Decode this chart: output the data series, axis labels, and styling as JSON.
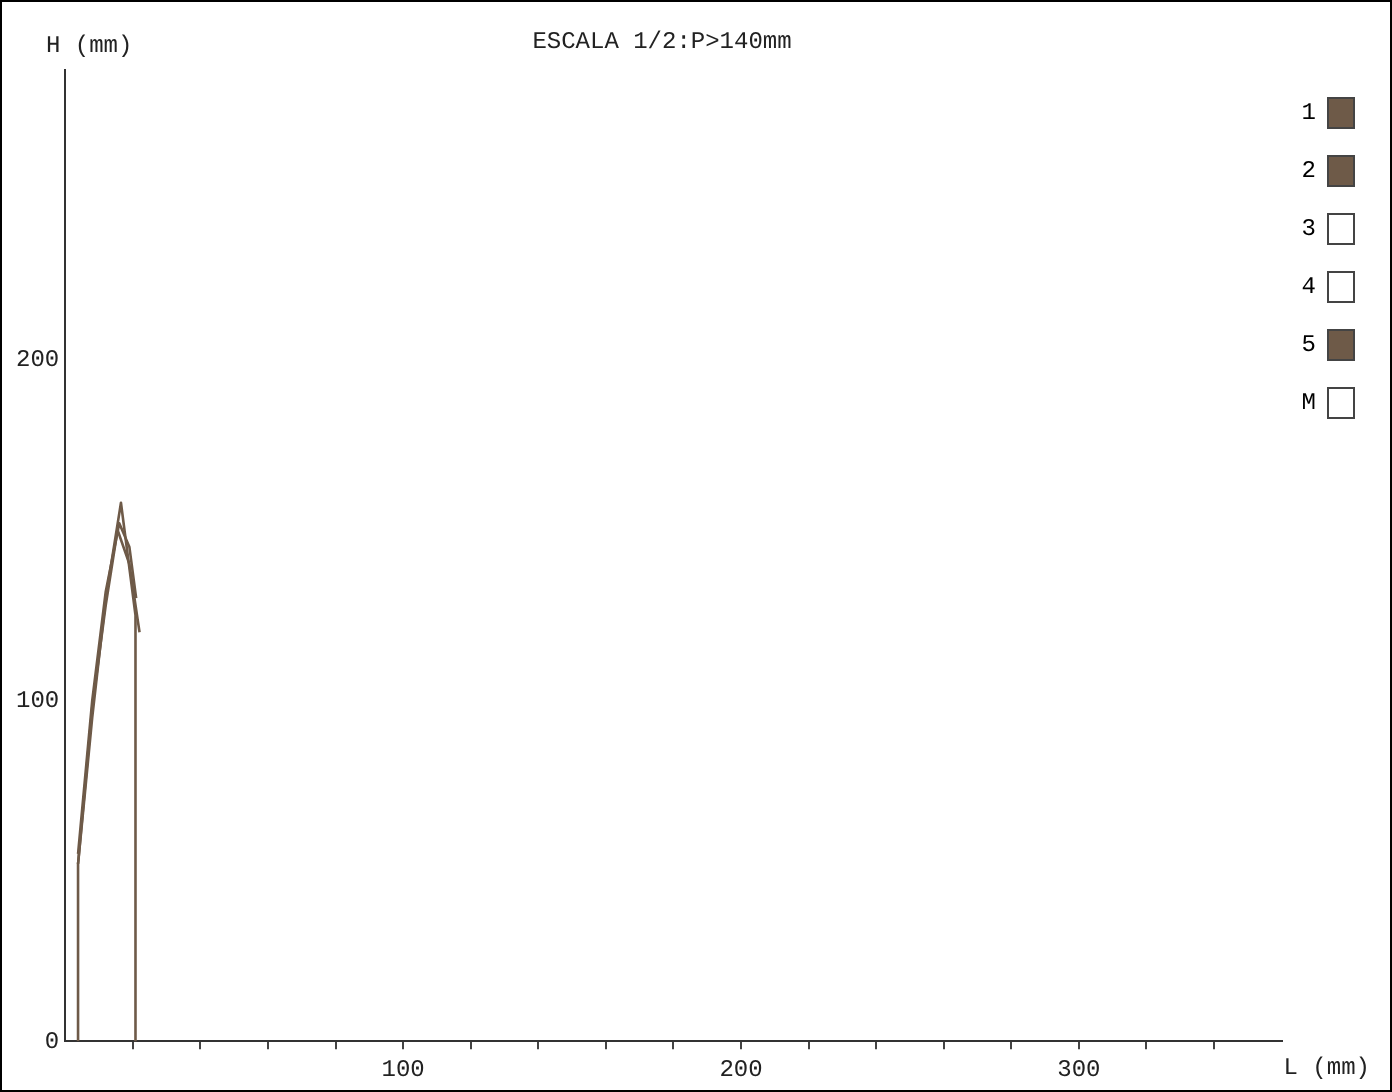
{
  "chart_data": {
    "type": "line",
    "title": "ESCALA 1/2:P>140mm",
    "xlabel": "L (mm)",
    "ylabel": "H (mm)",
    "xlim": [
      0,
      360
    ],
    "ylim": [
      0,
      285
    ],
    "xticks": [
      {
        "value": 20,
        "label": null
      },
      {
        "value": 40,
        "label": null
      },
      {
        "value": 60,
        "label": null
      },
      {
        "value": 80,
        "label": null
      },
      100,
      {
        "value": 120,
        "label": null
      },
      {
        "value": 140,
        "label": null
      },
      {
        "value": 160,
        "label": null
      },
      {
        "value": 180,
        "label": null
      },
      200,
      {
        "value": 220,
        "label": null
      },
      {
        "value": 240,
        "label": null
      },
      {
        "value": 260,
        "label": null
      },
      {
        "value": 280,
        "label": null
      },
      300,
      {
        "value": 320,
        "label": null
      },
      {
        "value": 340,
        "label": null
      }
    ],
    "yticks": [
      0,
      100,
      200
    ],
    "grid": false,
    "legend": "top right",
    "marker": "none",
    "line_style": "solid",
    "series": [
      {
        "name": "1",
        "color": "#6e5a48",
        "x": [
          3.8,
          3.8,
          8,
          12,
          16.5,
          20.8,
          20.8
        ],
        "values": [
          0,
          52,
          95,
          130,
          158,
          125,
          0
        ]
      },
      {
        "name": "2",
        "color": "#6e5a48",
        "x": [
          3.8,
          8,
          12,
          15.5,
          19,
          22
        ],
        "values": [
          52,
          98,
          128,
          150,
          140,
          120
        ]
      },
      {
        "name": "3",
        "color": "#ffffff"
      },
      {
        "name": "4",
        "color": "#ffffff"
      },
      {
        "name": "5",
        "color": "#6e5a48",
        "x": [
          3.8,
          8,
          12,
          16,
          19,
          21
        ],
        "values": [
          55,
          100,
          132,
          152,
          145,
          130
        ]
      },
      {
        "name": "M",
        "color": "#ffffff"
      }
    ]
  }
}
